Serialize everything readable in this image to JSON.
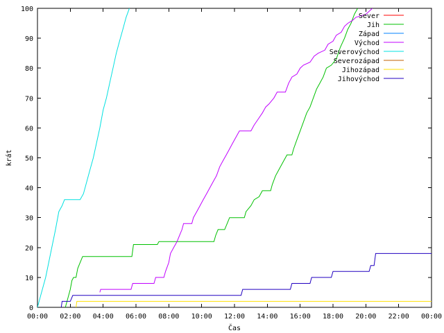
{
  "chart_data": {
    "type": "line",
    "title": "",
    "xlabel": "Čas",
    "ylabel": "krát",
    "xlim": [
      0,
      24
    ],
    "ylim": [
      0,
      100
    ],
    "x_unit": "hours",
    "x_ticks": [
      "00:00",
      "02:00",
      "04:00",
      "06:00",
      "08:00",
      "10:00",
      "12:00",
      "14:00",
      "16:00",
      "18:00",
      "20:00",
      "22:00",
      "00:00"
    ],
    "y_ticks": [
      "0",
      "10",
      "20",
      "30",
      "40",
      "50",
      "60",
      "70",
      "80",
      "90",
      "100"
    ],
    "grid": false,
    "legend_position": "top-right",
    "series": [
      {
        "name": "Sever",
        "color": "#ff0000",
        "points": []
      },
      {
        "name": "Jih",
        "color": "#00c000",
        "points": [
          [
            1.7,
            0
          ],
          [
            1.8,
            2
          ],
          [
            2.0,
            6
          ],
          [
            2.1,
            9
          ],
          [
            2.2,
            10
          ],
          [
            2.35,
            10
          ],
          [
            2.45,
            13
          ],
          [
            2.6,
            15
          ],
          [
            2.75,
            17
          ],
          [
            5.75,
            17
          ],
          [
            5.85,
            21
          ],
          [
            7.3,
            21
          ],
          [
            7.4,
            22
          ],
          [
            10.75,
            22
          ],
          [
            10.85,
            24
          ],
          [
            11.0,
            26
          ],
          [
            11.4,
            26
          ],
          [
            11.55,
            28
          ],
          [
            11.7,
            30
          ],
          [
            12.6,
            30
          ],
          [
            12.7,
            32
          ],
          [
            13.0,
            34
          ],
          [
            13.2,
            36
          ],
          [
            13.5,
            37
          ],
          [
            13.7,
            39
          ],
          [
            14.2,
            39
          ],
          [
            14.3,
            41
          ],
          [
            14.5,
            44
          ],
          [
            14.7,
            46
          ],
          [
            15.0,
            49
          ],
          [
            15.2,
            51
          ],
          [
            15.5,
            51
          ],
          [
            15.6,
            53
          ],
          [
            15.8,
            56
          ],
          [
            16.0,
            59
          ],
          [
            16.2,
            62
          ],
          [
            16.4,
            65
          ],
          [
            16.6,
            67
          ],
          [
            16.8,
            70
          ],
          [
            17.0,
            73
          ],
          [
            17.2,
            75
          ],
          [
            17.4,
            77
          ],
          [
            17.6,
            80
          ],
          [
            17.9,
            81
          ],
          [
            18.2,
            83
          ],
          [
            18.45,
            87
          ],
          [
            18.7,
            90
          ],
          [
            18.9,
            93
          ],
          [
            19.1,
            95
          ],
          [
            19.3,
            98
          ],
          [
            19.5,
            100
          ]
        ]
      },
      {
        "name": "Západ",
        "color": "#0080ff",
        "points": []
      },
      {
        "name": "Východ",
        "color": "#c000ff",
        "points": [
          [
            3.8,
            5
          ],
          [
            3.85,
            6
          ],
          [
            5.7,
            6
          ],
          [
            5.8,
            8
          ],
          [
            7.1,
            8
          ],
          [
            7.2,
            10
          ],
          [
            7.7,
            10
          ],
          [
            7.8,
            12
          ],
          [
            8.0,
            15
          ],
          [
            8.1,
            18
          ],
          [
            8.3,
            20
          ],
          [
            8.5,
            22
          ],
          [
            8.65,
            24
          ],
          [
            8.8,
            26
          ],
          [
            8.9,
            28
          ],
          [
            9.4,
            28
          ],
          [
            9.5,
            30
          ],
          [
            9.7,
            32
          ],
          [
            9.9,
            34
          ],
          [
            10.1,
            36
          ],
          [
            10.3,
            38
          ],
          [
            10.5,
            40
          ],
          [
            10.7,
            42
          ],
          [
            10.9,
            44
          ],
          [
            11.1,
            47
          ],
          [
            11.3,
            49
          ],
          [
            11.5,
            51
          ],
          [
            11.7,
            53
          ],
          [
            11.9,
            55
          ],
          [
            12.1,
            57
          ],
          [
            12.3,
            59
          ],
          [
            13.0,
            59
          ],
          [
            13.2,
            61
          ],
          [
            13.45,
            63
          ],
          [
            13.7,
            65
          ],
          [
            13.9,
            67
          ],
          [
            14.1,
            68
          ],
          [
            14.4,
            70
          ],
          [
            14.6,
            72
          ],
          [
            15.1,
            72
          ],
          [
            15.3,
            75
          ],
          [
            15.5,
            77
          ],
          [
            15.8,
            78
          ],
          [
            16.0,
            80
          ],
          [
            16.2,
            81
          ],
          [
            16.6,
            82
          ],
          [
            16.85,
            84
          ],
          [
            17.1,
            85
          ],
          [
            17.5,
            86
          ],
          [
            17.7,
            88
          ],
          [
            18.0,
            89
          ],
          [
            18.2,
            91
          ],
          [
            18.5,
            92
          ],
          [
            18.7,
            94
          ],
          [
            18.9,
            95
          ],
          [
            19.2,
            96
          ],
          [
            19.4,
            97
          ],
          [
            20.0,
            98
          ],
          [
            20.2,
            99
          ],
          [
            20.4,
            100
          ]
        ]
      },
      {
        "name": "Severovýchod",
        "color": "#00e0e0",
        "points": [
          [
            0,
            0
          ],
          [
            0.2,
            4
          ],
          [
            0.5,
            10
          ],
          [
            0.8,
            18
          ],
          [
            1.1,
            26
          ],
          [
            1.3,
            32
          ],
          [
            1.5,
            34
          ],
          [
            1.65,
            36
          ],
          [
            2.6,
            36
          ],
          [
            2.8,
            38
          ],
          [
            3.0,
            42
          ],
          [
            3.2,
            46
          ],
          [
            3.4,
            50
          ],
          [
            3.6,
            55
          ],
          [
            3.8,
            60
          ],
          [
            4.0,
            66
          ],
          [
            4.2,
            70
          ],
          [
            4.4,
            75
          ],
          [
            4.6,
            80
          ],
          [
            4.8,
            85
          ],
          [
            5.0,
            89
          ],
          [
            5.2,
            93
          ],
          [
            5.4,
            97
          ],
          [
            5.6,
            100
          ]
        ]
      },
      {
        "name": "Severozápad",
        "color": "#c06000",
        "points": []
      },
      {
        "name": "Jihozápad",
        "color": "#ffe000",
        "points": [
          [
            2.35,
            0
          ],
          [
            2.4,
            2
          ],
          [
            24,
            2
          ]
        ]
      },
      {
        "name": "Jihovýchod",
        "color": "#2000c0",
        "points": [
          [
            1.45,
            0
          ],
          [
            1.5,
            2
          ],
          [
            2.0,
            2
          ],
          [
            2.15,
            4
          ],
          [
            12.4,
            4
          ],
          [
            12.5,
            6
          ],
          [
            15.4,
            6
          ],
          [
            15.5,
            8
          ],
          [
            16.6,
            8
          ],
          [
            16.7,
            10
          ],
          [
            17.9,
            10
          ],
          [
            18.0,
            12
          ],
          [
            20.2,
            12
          ],
          [
            20.3,
            14
          ],
          [
            20.5,
            14
          ],
          [
            20.6,
            18
          ],
          [
            24,
            18
          ]
        ]
      }
    ]
  }
}
